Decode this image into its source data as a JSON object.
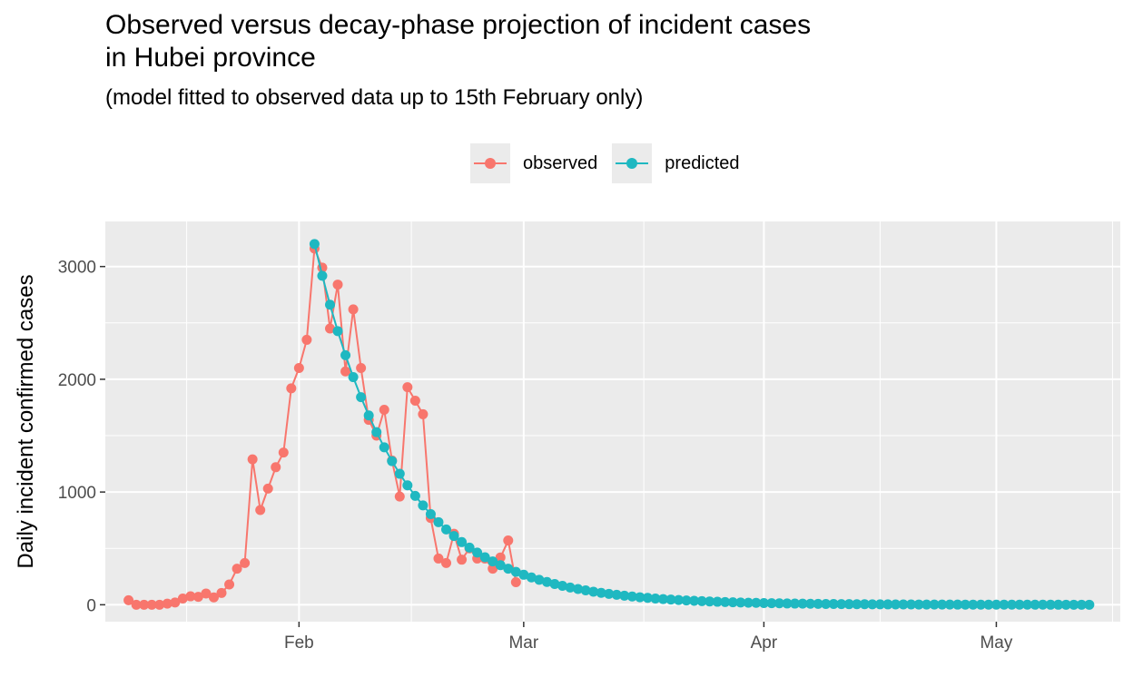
{
  "title": "Observed versus decay-phase projection of incident cases\nin Hubei province",
  "subtitle": "(model fitted to observed data up to 15th February only)",
  "legend": {
    "observed": {
      "label": "observed",
      "color": "#f8766d"
    },
    "predicted": {
      "label": "predicted",
      "color": "#1fb8c1"
    }
  },
  "chart_data": {
    "type": "line",
    "title": "Observed versus decay-phase projection of incident cases in Hubei province",
    "subtitle": "(model fitted to observed data up to 15th February only)",
    "xlabel": "",
    "ylabel": "Daily incident confirmed cases",
    "x_type": "date",
    "xlim": [
      "2020-01-07",
      "2020-05-17"
    ],
    "ylim": [
      -150,
      3400
    ],
    "x_ticks": [
      {
        "date": "2020-02-01",
        "label": "Feb"
      },
      {
        "date": "2020-03-01",
        "label": "Mar"
      },
      {
        "date": "2020-04-01",
        "label": "Apr"
      },
      {
        "date": "2020-05-01",
        "label": "May"
      }
    ],
    "y_ticks": [
      0,
      1000,
      2000,
      3000
    ],
    "grid": true,
    "legend_position": "top",
    "series": [
      {
        "name": "observed",
        "color": "#f8766d",
        "start_date": "2020-01-10",
        "values": [
          40,
          0,
          0,
          0,
          0,
          10,
          20,
          55,
          75,
          70,
          100,
          65,
          105,
          180,
          320,
          370,
          1290,
          840,
          1030,
          1220,
          1350,
          1920,
          2100,
          2350,
          3160,
          2990,
          2450,
          2840,
          2070,
          2620,
          2100,
          1640,
          1500,
          1730,
          1280,
          960,
          1930,
          1810,
          1690,
          770,
          410,
          370,
          630,
          400,
          500,
          410,
          410,
          320,
          420,
          570,
          200
        ]
      },
      {
        "name": "predicted",
        "color": "#1fb8c1",
        "start_date": "2020-02-03",
        "decay_factor": 0.912,
        "start_value": 3200,
        "end_date": "2020-05-13"
      }
    ]
  }
}
